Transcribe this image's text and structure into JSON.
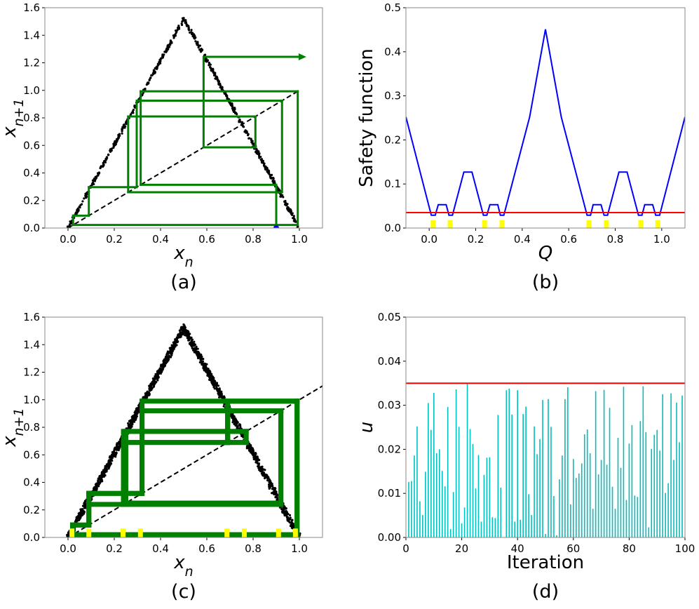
{
  "chart_data": [
    {
      "panel_label": "(a)",
      "type": "line",
      "xlabel": "x_n",
      "ylabel": "x_n+1",
      "xlim": [
        -0.1,
        1.1
      ],
      "ylim": [
        0,
        1.6
      ],
      "xticks": [
        "0.0",
        "0.2",
        "0.4",
        "0.6",
        "0.8",
        "1.0"
      ],
      "yticks": [
        "0.0",
        "0.2",
        "0.4",
        "0.6",
        "0.8",
        "1.0",
        "1.2",
        "1.4",
        "1.6"
      ],
      "map_peak": 1.52,
      "diagonal_end": 1.0,
      "trajectory": [
        0.9,
        0.314,
        0.993,
        0.022,
        0.09,
        0.297,
        0.925,
        0.26,
        0.81,
        0.586,
        1.243
      ],
      "arrow_end_x": 1.03,
      "start_point": 0.9,
      "colors": {
        "map": "#000000",
        "cobweb": "#008000",
        "start": "#0000ff"
      }
    },
    {
      "panel_label": "(b)",
      "type": "line",
      "xlabel": "Q",
      "ylabel": "Safety function",
      "xlim": [
        -0.1,
        1.1
      ],
      "ylim": [
        0,
        0.5
      ],
      "xticks": [
        "0.0",
        "0.2",
        "0.4",
        "0.6",
        "0.8",
        "1.0"
      ],
      "yticks": [
        "0.0",
        "0.1",
        "0.2",
        "0.3",
        "0.4",
        "0.5"
      ],
      "x": [
        -0.1,
        0.009,
        0.026,
        0.039,
        0.073,
        0.085,
        0.1,
        0.149,
        0.184,
        0.233,
        0.248,
        0.261,
        0.295,
        0.306,
        0.321,
        0.432,
        0.5,
        0.568,
        0.679,
        0.694,
        0.705,
        0.739,
        0.752,
        0.767,
        0.816,
        0.851,
        0.9,
        0.915,
        0.927,
        0.961,
        0.974,
        0.991,
        1.1
      ],
      "y": [
        0.252,
        0.029,
        0.029,
        0.053,
        0.053,
        0.029,
        0.029,
        0.127,
        0.127,
        0.029,
        0.029,
        0.053,
        0.053,
        0.029,
        0.029,
        0.252,
        0.451,
        0.252,
        0.029,
        0.029,
        0.053,
        0.053,
        0.029,
        0.029,
        0.127,
        0.127,
        0.029,
        0.029,
        0.053,
        0.053,
        0.029,
        0.029,
        0.252
      ],
      "threshold": 0.035,
      "safe_points": [
        0.017,
        0.09,
        0.238,
        0.313,
        0.687,
        0.762,
        0.91,
        0.983
      ],
      "colors": {
        "line": "#0000ff",
        "threshold": "#ff0000",
        "safe": "#ffff00"
      }
    },
    {
      "panel_label": "(c)",
      "type": "line",
      "xlabel": "x_n",
      "ylabel": "x_n+1",
      "xlim": [
        -0.1,
        1.1
      ],
      "ylim": [
        0,
        1.6
      ],
      "xticks": [
        "0.0",
        "0.2",
        "0.4",
        "0.6",
        "0.8",
        "1.0"
      ],
      "yticks": [
        "0.0",
        "0.2",
        "0.4",
        "0.6",
        "0.8",
        "1.0",
        "1.2",
        "1.4",
        "1.6"
      ],
      "map_peak": 1.52,
      "diagonal_end": 1.1,
      "trajectory": [
        0.98,
        0.02,
        0.09,
        0.32,
        0.99,
        0.02,
        0.09,
        0.24,
        0.77,
        0.69,
        0.92,
        0.24,
        0.69,
        0.99,
        0.02,
        0.09,
        0.32,
        0.92,
        0.25,
        0.77,
        0.69,
        0.92,
        0.24,
        0.69,
        0.99,
        0.02
      ],
      "safe_points": [
        0.017,
        0.09,
        0.238,
        0.313,
        0.687,
        0.762,
        0.91,
        0.983
      ],
      "colors": {
        "map": "#000000",
        "cobweb": "#008000",
        "safe": "#ffff00"
      }
    },
    {
      "panel_label": "(d)",
      "type": "bar",
      "xlabel": "Iteration",
      "ylabel": "u",
      "xlim": [
        0,
        100
      ],
      "ylim": [
        0,
        0.05
      ],
      "xticks": [
        "0",
        "20",
        "40",
        "60",
        "80",
        "100"
      ],
      "yticks": [
        "0.00",
        "0.01",
        "0.02",
        "0.03",
        "0.04",
        "0.05"
      ],
      "threshold": 0.035,
      "x_start": 1,
      "values": [
        0.0126,
        0.0128,
        0.0186,
        0.0252,
        0.0082,
        0.0051,
        0.0149,
        0.0305,
        0.0244,
        0.0328,
        0.0191,
        0.02,
        0.0151,
        0.0116,
        0.0296,
        0.0019,
        0.0103,
        0.0336,
        0.0251,
        0.0032,
        0.0068,
        0.0349,
        0.0246,
        0.0212,
        0.0111,
        0.0187,
        0.0036,
        0.0142,
        0.0181,
        0.0182,
        0.0046,
        0.0044,
        0.0278,
        0.0113,
        0.0,
        0.0334,
        0.0338,
        0.0279,
        0.0036,
        0.0334,
        0.004,
        0.028,
        0.0297,
        0.0098,
        0.0051,
        0.0252,
        0.0189,
        0.0223,
        0.0312,
        0.0008,
        0.0314,
        0.0251,
        0.0094,
        0.0005,
        0.0132,
        0.0186,
        0.0314,
        0.0341,
        0.0075,
        0.0178,
        0.0135,
        0.0145,
        0.0168,
        0.0234,
        0.0245,
        0.0191,
        0.0065,
        0.0332,
        0.0143,
        0.0176,
        0.0335,
        0.0165,
        0.0294,
        0.0115,
        0.0065,
        0.0226,
        0.0158,
        0.0342,
        0.0085,
        0.0213,
        0.0255,
        0.0095,
        0.0092,
        0.0264,
        0.0343,
        0.0239,
        0.0023,
        0.0201,
        0.0233,
        0.0244,
        0.0197,
        0.0325,
        0.0101,
        0.0123,
        0.0327,
        0.0176,
        0.0306,
        0.0216,
        0.0322
      ],
      "colors": {
        "bars": "#00bfbf",
        "threshold": "#ff0000"
      }
    }
  ]
}
